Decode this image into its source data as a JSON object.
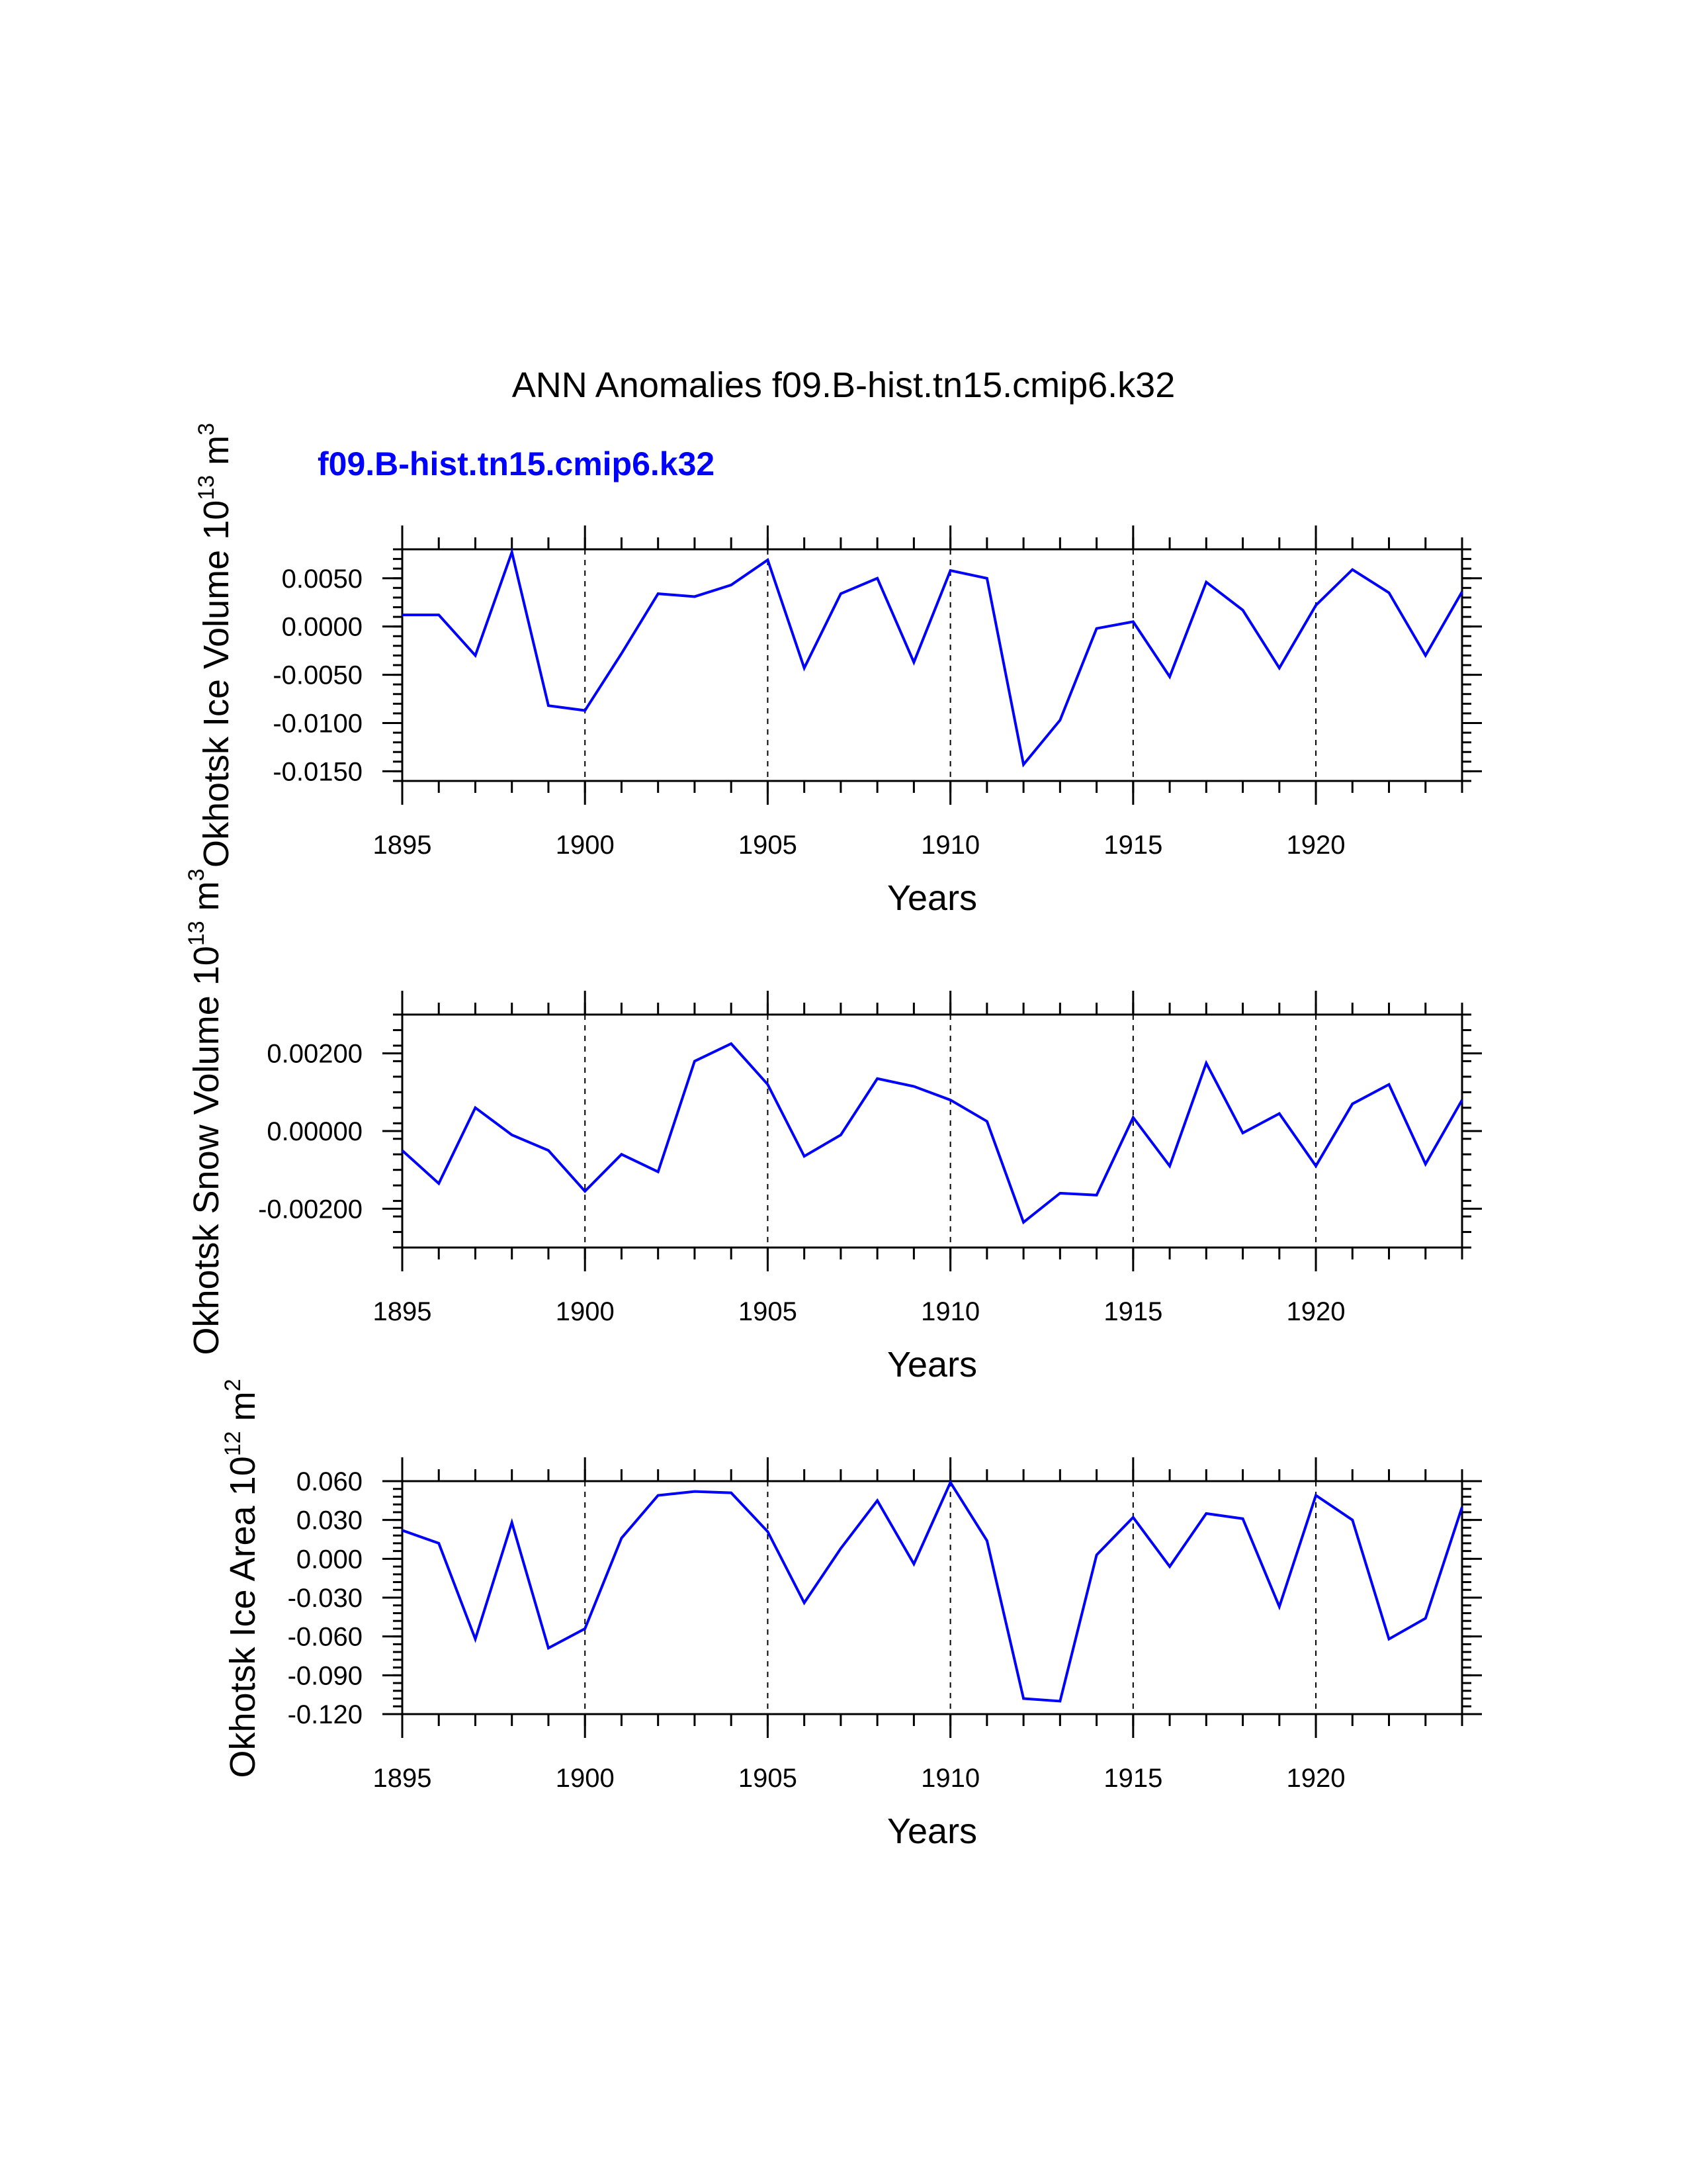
{
  "figure": {
    "title": "ANN Anomalies f09.B-hist.tn15.cmip6.k32",
    "legend_label": "f09.B-hist.tn15.cmip6.k32",
    "line_color": "#0000ff"
  },
  "chart_data": [
    {
      "type": "line",
      "ylabel": "Okhotsk Ice Volume",
      "yunit_base": "10",
      "yunit_exp": "13",
      "yunit_m": "m",
      "yunit_mexp": "3",
      "xlabel": "Years",
      "xlim": [
        1895,
        1924
      ],
      "ylim": [
        -0.016,
        0.008
      ],
      "xticks": [
        1895,
        1900,
        1905,
        1910,
        1915,
        1920
      ],
      "xtick_labels": [
        "1895",
        "1900",
        "1905",
        "1910",
        "1915",
        "1920"
      ],
      "yticks": [
        0.005,
        0.0,
        -0.005,
        -0.01,
        -0.015
      ],
      "ytick_labels": [
        "0.0050",
        "0.0000",
        "-0.0050",
        "-0.0100",
        "-0.0150"
      ],
      "grid_x": [
        1900,
        1905,
        1910,
        1915,
        1920
      ],
      "x": [
        1895,
        1896,
        1897,
        1898,
        1899,
        1900,
        1901,
        1902,
        1903,
        1904,
        1905,
        1906,
        1907,
        1908,
        1909,
        1910,
        1911,
        1912,
        1913,
        1914,
        1915,
        1916,
        1917,
        1918,
        1919,
        1920,
        1921,
        1922,
        1923,
        1924
      ],
      "values": [
        0.0012,
        0.0012,
        -0.003,
        0.0077,
        -0.0082,
        -0.0087,
        -0.0028,
        0.0034,
        0.0031,
        0.0043,
        0.0069,
        -0.0043,
        0.0034,
        0.005,
        -0.0037,
        0.0058,
        0.005,
        -0.0143,
        -0.0097,
        -0.0002,
        0.0005,
        -0.0052,
        0.0046,
        0.0017,
        -0.0043,
        0.0022,
        0.0059,
        0.0035,
        -0.003,
        0.0036
      ]
    },
    {
      "type": "line",
      "ylabel": "Okhotsk Snow Volume",
      "yunit_base": "10",
      "yunit_exp": "13",
      "yunit_m": "m",
      "yunit_mexp": "3",
      "xlabel": "Years",
      "xlim": [
        1895,
        1924
      ],
      "ylim": [
        -0.003,
        0.003
      ],
      "xticks": [
        1895,
        1900,
        1905,
        1910,
        1915,
        1920
      ],
      "xtick_labels": [
        "1895",
        "1900",
        "1905",
        "1910",
        "1915",
        "1920"
      ],
      "yticks": [
        0.002,
        0.0,
        -0.002
      ],
      "ytick_labels": [
        "0.00200",
        "0.00000",
        "-0.00200"
      ],
      "grid_x": [
        1900,
        1905,
        1910,
        1915,
        1920
      ],
      "x": [
        1895,
        1896,
        1897,
        1898,
        1899,
        1900,
        1901,
        1902,
        1903,
        1904,
        1905,
        1906,
        1907,
        1908,
        1909,
        1910,
        1911,
        1912,
        1913,
        1914,
        1915,
        1916,
        1917,
        1918,
        1919,
        1920,
        1921,
        1922,
        1923,
        1924
      ],
      "values": [
        -0.0005,
        -0.00135,
        0.0006,
        -0.0001,
        -0.0005,
        -0.00155,
        -0.0006,
        -0.00105,
        0.0018,
        0.00225,
        0.0012,
        -0.00065,
        -0.0001,
        0.00135,
        0.00115,
        0.0008,
        0.00025,
        -0.00235,
        -0.0016,
        -0.00165,
        0.00035,
        -0.0009,
        0.00175,
        -5e-05,
        0.00045,
        -0.0009,
        0.0007,
        0.0012,
        -0.00085,
        0.0008
      ]
    },
    {
      "type": "line",
      "ylabel": "Okhotsk Ice Area",
      "yunit_base": "10",
      "yunit_exp": "12",
      "yunit_m": "m",
      "yunit_mexp": "2",
      "xlabel": "Years",
      "xlim": [
        1895,
        1924
      ],
      "ylim": [
        -0.12,
        0.06
      ],
      "xticks": [
        1895,
        1900,
        1905,
        1910,
        1915,
        1920
      ],
      "xtick_labels": [
        "1895",
        "1900",
        "1905",
        "1910",
        "1915",
        "1920"
      ],
      "yticks": [
        0.06,
        0.03,
        0.0,
        -0.03,
        -0.06,
        -0.09,
        -0.12
      ],
      "ytick_labels": [
        "0.060",
        "0.030",
        "0.000",
        "-0.030",
        "-0.060",
        "-0.090",
        "-0.120"
      ],
      "grid_x": [
        1900,
        1905,
        1910,
        1915,
        1920
      ],
      "x": [
        1895,
        1896,
        1897,
        1898,
        1899,
        1900,
        1901,
        1902,
        1903,
        1904,
        1905,
        1906,
        1907,
        1908,
        1909,
        1910,
        1911,
        1912,
        1913,
        1914,
        1915,
        1916,
        1917,
        1918,
        1919,
        1920,
        1921,
        1922,
        1923,
        1924
      ],
      "values": [
        0.022,
        0.012,
        -0.062,
        0.028,
        -0.069,
        -0.054,
        0.016,
        0.049,
        0.052,
        0.051,
        0.021,
        -0.034,
        0.008,
        0.045,
        -0.004,
        0.059,
        0.014,
        -0.108,
        -0.11,
        0.003,
        0.032,
        -0.006,
        0.035,
        0.031,
        -0.037,
        0.049,
        0.03,
        -0.062,
        -0.046,
        0.04
      ]
    }
  ]
}
